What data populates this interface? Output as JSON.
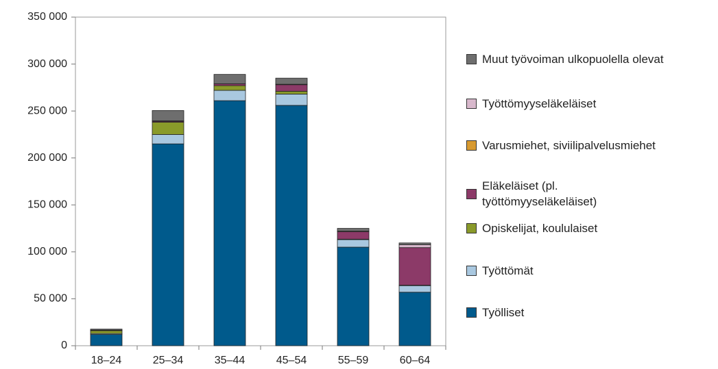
{
  "chart_data": {
    "type": "stacked_bar",
    "categories": [
      "18–24",
      "25–34",
      "35–44",
      "45–54",
      "55–59",
      "60–64"
    ],
    "series": [
      {
        "name": "Työlliset",
        "color": "#005a8c",
        "values": [
          12000,
          215000,
          261000,
          256000,
          105000,
          57000
        ]
      },
      {
        "name": "Työttömät",
        "color": "#a9c8e0",
        "values": [
          1000,
          10000,
          11000,
          12000,
          8000,
          7000
        ]
      },
      {
        "name": "Opiskelijat, koululaiset",
        "color": "#8a9a2a",
        "values": [
          3000,
          13000,
          5000,
          3000,
          500,
          500
        ]
      },
      {
        "name": "Eläkeläiset (pl. työttömyyseläkeläiset)",
        "color": "#8c3a68",
        "values": [
          200,
          1000,
          2000,
          7000,
          8000,
          40000
        ]
      },
      {
        "name": "Varusmiehet, siviilipalvelusmiehet",
        "color": "#d89a30",
        "values": [
          500,
          500,
          0,
          0,
          0,
          0
        ]
      },
      {
        "name": "Työttömyyseläkeläiset",
        "color": "#d8b8cc",
        "values": [
          0,
          0,
          0,
          500,
          500,
          3000
        ]
      },
      {
        "name": "Muut työvoiman ulkopuolella olevat",
        "color": "#6e6e6e",
        "values": [
          1000,
          11000,
          10000,
          6500,
          3000,
          2000
        ]
      }
    ],
    "ylim": [
      0,
      350000
    ],
    "yticks": [
      0,
      {
        "value": 50000,
        "label": "50 000"
      },
      {
        "value": 100000,
        "label": "100 000"
      },
      {
        "value": 150000,
        "label": "150 000"
      },
      {
        "value": 200000,
        "label": "200 000"
      },
      {
        "value": 250000,
        "label": "250 000"
      },
      {
        "value": 300000,
        "label": "300 000"
      },
      {
        "value": 350000,
        "label": "350 000"
      }
    ],
    "legend": "right"
  }
}
